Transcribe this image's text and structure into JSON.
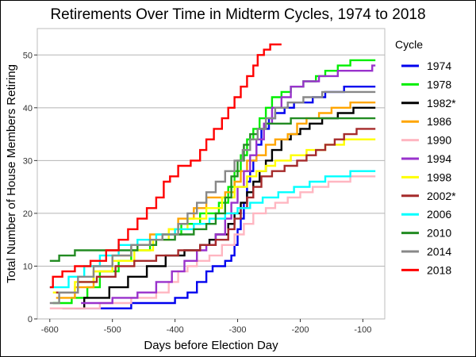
{
  "chart_data": {
    "type": "line",
    "step": true,
    "title": "Retirements Over Time in Midterm Cycles, 1974 to 2018",
    "xlabel": "Days before Election Day",
    "ylabel": "Total Number of House Members Retiring",
    "xlim": [
      -620,
      -65
    ],
    "ylim": [
      0,
      55
    ],
    "xticks": [
      -600,
      -500,
      -400,
      -300,
      -200,
      -100
    ],
    "yticks": [
      0,
      10,
      20,
      30,
      40,
      50
    ],
    "grid": "horizontal",
    "legend": {
      "title": "Cycle",
      "placement": "right"
    },
    "background": "#ffffff",
    "series": [
      {
        "name": "1974",
        "color": "#0000ee",
        "points": [
          [
            -560,
            2
          ],
          [
            -470,
            3
          ],
          [
            -400,
            4
          ],
          [
            -380,
            5
          ],
          [
            -365,
            7
          ],
          [
            -350,
            9
          ],
          [
            -340,
            10
          ],
          [
            -320,
            11
          ],
          [
            -310,
            12
          ],
          [
            -305,
            14
          ],
          [
            -300,
            17
          ],
          [
            -295,
            19
          ],
          [
            -290,
            22
          ],
          [
            -285,
            26
          ],
          [
            -280,
            28
          ],
          [
            -275,
            30
          ],
          [
            -270,
            33
          ],
          [
            -262,
            36
          ],
          [
            -250,
            38
          ],
          [
            -240,
            39
          ],
          [
            -225,
            40
          ],
          [
            -210,
            41
          ],
          [
            -180,
            42
          ],
          [
            -160,
            43
          ],
          [
            -130,
            44
          ],
          [
            -80,
            44
          ]
        ]
      },
      {
        "name": "1978",
        "color": "#00ee00",
        "points": [
          [
            -595,
            3
          ],
          [
            -565,
            4
          ],
          [
            -540,
            6
          ],
          [
            -520,
            9
          ],
          [
            -490,
            11
          ],
          [
            -470,
            13
          ],
          [
            -440,
            15
          ],
          [
            -420,
            16
          ],
          [
            -390,
            18
          ],
          [
            -360,
            20
          ],
          [
            -330,
            22
          ],
          [
            -315,
            25
          ],
          [
            -305,
            28
          ],
          [
            -295,
            31
          ],
          [
            -285,
            34
          ],
          [
            -275,
            36
          ],
          [
            -265,
            38
          ],
          [
            -255,
            40
          ],
          [
            -245,
            42
          ],
          [
            -230,
            43
          ],
          [
            -215,
            44
          ],
          [
            -195,
            45
          ],
          [
            -175,
            46
          ],
          [
            -160,
            47
          ],
          [
            -140,
            48
          ],
          [
            -120,
            49
          ],
          [
            -80,
            49
          ]
        ]
      },
      {
        "name": "1982*",
        "color": "#000000",
        "points": [
          [
            -580,
            2
          ],
          [
            -545,
            4
          ],
          [
            -505,
            6
          ],
          [
            -475,
            8
          ],
          [
            -445,
            10
          ],
          [
            -415,
            12
          ],
          [
            -385,
            13
          ],
          [
            -360,
            14
          ],
          [
            -345,
            15
          ],
          [
            -335,
            16
          ],
          [
            -315,
            18
          ],
          [
            -305,
            20
          ],
          [
            -295,
            22
          ],
          [
            -285,
            24
          ],
          [
            -275,
            26
          ],
          [
            -265,
            28
          ],
          [
            -255,
            30
          ],
          [
            -245,
            32
          ],
          [
            -230,
            34
          ],
          [
            -215,
            35
          ],
          [
            -200,
            36
          ],
          [
            -185,
            37
          ],
          [
            -165,
            38
          ],
          [
            -140,
            39
          ],
          [
            -115,
            40
          ],
          [
            -80,
            40
          ]
        ]
      },
      {
        "name": "1986",
        "color": "#ffa500",
        "points": [
          [
            -590,
            4
          ],
          [
            -560,
            6
          ],
          [
            -530,
            9
          ],
          [
            -500,
            12
          ],
          [
            -470,
            14
          ],
          [
            -440,
            16
          ],
          [
            -410,
            17
          ],
          [
            -395,
            19
          ],
          [
            -370,
            21
          ],
          [
            -350,
            23
          ],
          [
            -320,
            24
          ],
          [
            -305,
            26
          ],
          [
            -295,
            28
          ],
          [
            -285,
            30
          ],
          [
            -270,
            31
          ],
          [
            -255,
            33
          ],
          [
            -240,
            34
          ],
          [
            -220,
            35
          ],
          [
            -205,
            37
          ],
          [
            -190,
            38
          ],
          [
            -170,
            39
          ],
          [
            -150,
            40
          ],
          [
            -120,
            41
          ],
          [
            -80,
            41
          ]
        ]
      },
      {
        "name": "1990",
        "color": "#ffb6c1",
        "points": [
          [
            -600,
            2
          ],
          [
            -520,
            3
          ],
          [
            -470,
            4
          ],
          [
            -430,
            5
          ],
          [
            -410,
            7
          ],
          [
            -395,
            9
          ],
          [
            -380,
            10
          ],
          [
            -365,
            11
          ],
          [
            -345,
            12
          ],
          [
            -325,
            14
          ],
          [
            -305,
            16
          ],
          [
            -290,
            18
          ],
          [
            -275,
            20
          ],
          [
            -255,
            21
          ],
          [
            -240,
            22
          ],
          [
            -220,
            23
          ],
          [
            -200,
            24
          ],
          [
            -180,
            25
          ],
          [
            -155,
            26
          ],
          [
            -120,
            27
          ],
          [
            -80,
            27
          ]
        ]
      },
      {
        "name": "1994",
        "color": "#9932cc",
        "points": [
          [
            -550,
            3
          ],
          [
            -500,
            4
          ],
          [
            -460,
            5
          ],
          [
            -430,
            7
          ],
          [
            -405,
            9
          ],
          [
            -385,
            11
          ],
          [
            -365,
            13
          ],
          [
            -350,
            14
          ],
          [
            -335,
            16
          ],
          [
            -320,
            19
          ],
          [
            -310,
            22
          ],
          [
            -300,
            25
          ],
          [
            -290,
            28
          ],
          [
            -280,
            31
          ],
          [
            -270,
            34
          ],
          [
            -258,
            37
          ],
          [
            -245,
            40
          ],
          [
            -230,
            42
          ],
          [
            -215,
            44
          ],
          [
            -195,
            45
          ],
          [
            -170,
            46
          ],
          [
            -140,
            47
          ],
          [
            -100,
            47
          ],
          [
            -85,
            48
          ],
          [
            -80,
            48
          ]
        ]
      },
      {
        "name": "1998",
        "color": "#ffff00",
        "points": [
          [
            -595,
            5
          ],
          [
            -560,
            7
          ],
          [
            -530,
            9
          ],
          [
            -500,
            11
          ],
          [
            -465,
            13
          ],
          [
            -435,
            15
          ],
          [
            -410,
            17
          ],
          [
            -380,
            19
          ],
          [
            -350,
            21
          ],
          [
            -325,
            23
          ],
          [
            -305,
            25
          ],
          [
            -285,
            27
          ],
          [
            -270,
            28
          ],
          [
            -255,
            29
          ],
          [
            -240,
            30
          ],
          [
            -215,
            31
          ],
          [
            -190,
            32
          ],
          [
            -160,
            33
          ],
          [
            -130,
            34
          ],
          [
            -80,
            34
          ]
        ]
      },
      {
        "name": "2002*",
        "color": "#a52a2a",
        "points": [
          [
            -590,
            5
          ],
          [
            -555,
            7
          ],
          [
            -525,
            8
          ],
          [
            -495,
            10
          ],
          [
            -465,
            11
          ],
          [
            -430,
            12
          ],
          [
            -395,
            13
          ],
          [
            -360,
            14
          ],
          [
            -335,
            15
          ],
          [
            -315,
            17
          ],
          [
            -305,
            19
          ],
          [
            -295,
            21
          ],
          [
            -285,
            23
          ],
          [
            -275,
            25
          ],
          [
            -262,
            27
          ],
          [
            -245,
            28
          ],
          [
            -225,
            29
          ],
          [
            -205,
            30
          ],
          [
            -190,
            31
          ],
          [
            -175,
            32
          ],
          [
            -160,
            33
          ],
          [
            -145,
            34
          ],
          [
            -130,
            35
          ],
          [
            -110,
            36
          ],
          [
            -80,
            36
          ]
        ]
      },
      {
        "name": "2006",
        "color": "#00ffff",
        "points": [
          [
            -600,
            6
          ],
          [
            -570,
            8
          ],
          [
            -545,
            10
          ],
          [
            -520,
            12
          ],
          [
            -490,
            14
          ],
          [
            -460,
            15
          ],
          [
            -430,
            16
          ],
          [
            -400,
            17
          ],
          [
            -370,
            18
          ],
          [
            -345,
            19
          ],
          [
            -320,
            20
          ],
          [
            -300,
            21
          ],
          [
            -280,
            22
          ],
          [
            -260,
            23
          ],
          [
            -235,
            24
          ],
          [
            -210,
            25
          ],
          [
            -185,
            26
          ],
          [
            -160,
            27
          ],
          [
            -120,
            28
          ],
          [
            -80,
            28
          ]
        ]
      },
      {
        "name": "2010",
        "color": "#228b22",
        "points": [
          [
            -600,
            11
          ],
          [
            -585,
            12
          ],
          [
            -560,
            13
          ],
          [
            -500,
            13
          ],
          [
            -460,
            14
          ],
          [
            -430,
            15
          ],
          [
            -400,
            16
          ],
          [
            -370,
            17
          ],
          [
            -350,
            18
          ],
          [
            -335,
            20
          ],
          [
            -320,
            23
          ],
          [
            -310,
            27
          ],
          [
            -300,
            30
          ],
          [
            -290,
            33
          ],
          [
            -280,
            35
          ],
          [
            -268,
            36
          ],
          [
            -255,
            37
          ],
          [
            -235,
            37
          ],
          [
            -215,
            38
          ],
          [
            -190,
            38
          ],
          [
            -160,
            38
          ],
          [
            -120,
            38
          ],
          [
            -80,
            38
          ]
        ]
      },
      {
        "name": "2014",
        "color": "#888888",
        "points": [
          [
            -600,
            3
          ],
          [
            -585,
            5
          ],
          [
            -555,
            8
          ],
          [
            -530,
            10
          ],
          [
            -500,
            12
          ],
          [
            -470,
            14
          ],
          [
            -440,
            15
          ],
          [
            -420,
            16
          ],
          [
            -395,
            18
          ],
          [
            -380,
            20
          ],
          [
            -365,
            22
          ],
          [
            -350,
            24
          ],
          [
            -335,
            26
          ],
          [
            -320,
            28
          ],
          [
            -305,
            30
          ],
          [
            -292,
            32
          ],
          [
            -280,
            34
          ],
          [
            -268,
            36
          ],
          [
            -255,
            38
          ],
          [
            -240,
            40
          ],
          [
            -220,
            41
          ],
          [
            -195,
            42
          ],
          [
            -165,
            43
          ],
          [
            -120,
            43
          ],
          [
            -80,
            43
          ]
        ]
      },
      {
        "name": "2018",
        "color": "#ff0000",
        "points": [
          [
            -600,
            6
          ],
          [
            -595,
            8
          ],
          [
            -580,
            9
          ],
          [
            -560,
            10
          ],
          [
            -535,
            11
          ],
          [
            -510,
            13
          ],
          [
            -490,
            15
          ],
          [
            -475,
            17
          ],
          [
            -460,
            19
          ],
          [
            -445,
            21
          ],
          [
            -430,
            23
          ],
          [
            -418,
            26
          ],
          [
            -408,
            27
          ],
          [
            -395,
            29
          ],
          [
            -375,
            30
          ],
          [
            -360,
            32
          ],
          [
            -350,
            34
          ],
          [
            -338,
            36
          ],
          [
            -325,
            38
          ],
          [
            -315,
            40
          ],
          [
            -305,
            42
          ],
          [
            -295,
            44
          ],
          [
            -285,
            46
          ],
          [
            -275,
            48
          ],
          [
            -268,
            50
          ],
          [
            -258,
            51
          ],
          [
            -248,
            52
          ],
          [
            -230,
            52
          ]
        ]
      }
    ]
  }
}
